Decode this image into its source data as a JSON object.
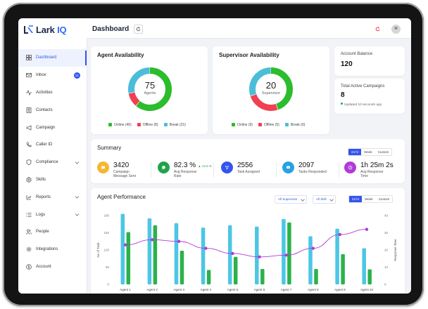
{
  "app": {
    "logo_main": "Lark",
    "logo_accent": "IQ",
    "page_title": "Dashboard",
    "avatar_initial": "M"
  },
  "sidebar": {
    "items": [
      {
        "label": "Dashboard",
        "icon": "grid-icon",
        "active": true
      },
      {
        "label": "Inbox",
        "icon": "mail-icon",
        "badge": "21"
      },
      {
        "label": "Activities",
        "icon": "pulse-icon"
      },
      {
        "label": "Contacts",
        "icon": "contacts-icon"
      },
      {
        "label": "Campaign",
        "icon": "megaphone-icon"
      },
      {
        "label": "Caller ID",
        "icon": "phone-icon"
      },
      {
        "label": "Compliance",
        "icon": "shield-icon",
        "expandable": true
      },
      {
        "label": "Skills",
        "icon": "badge-icon"
      },
      {
        "label": "Reports",
        "icon": "reports-icon",
        "expandable": true
      },
      {
        "label": "Logs",
        "icon": "list-icon",
        "expandable": true
      },
      {
        "label": "People",
        "icon": "people-icon"
      },
      {
        "label": "Integrations",
        "icon": "gear-icon"
      },
      {
        "label": "Account",
        "icon": "dollar-icon"
      }
    ]
  },
  "agent_availability": {
    "title": "Agent Availability",
    "total": "75",
    "center_label": "Agents",
    "segments": [
      {
        "label": "Online (46)",
        "value": 46,
        "color": "#2bbd2b"
      },
      {
        "label": "Offline (8)",
        "value": 8,
        "color": "#f04052"
      },
      {
        "label": "Break (21)",
        "value": 21,
        "color": "#4cbdd9"
      }
    ]
  },
  "supervisor_availability": {
    "title": "Supervisor Availability",
    "total": "20",
    "center_label": "Supervisor",
    "segments": [
      {
        "label": "Online (9)",
        "value": 9,
        "color": "#2bbd2b"
      },
      {
        "label": "Offline (5)",
        "value": 5,
        "color": "#f04052"
      },
      {
        "label": "Break (6)",
        "value": 6,
        "color": "#4cbdd9"
      }
    ]
  },
  "account_balance": {
    "label": "Account Balance",
    "value": "120"
  },
  "active_campaigns": {
    "label": "Total Active Campaigns",
    "value": "8",
    "updated": "Updated 10 seconds ago"
  },
  "summary": {
    "title": "Summary",
    "range_options": [
      "24 hr",
      "Week",
      "Custom"
    ],
    "selected_range": "24 hr",
    "kpis": [
      {
        "value": "3420",
        "label_1": "Campaign",
        "label_2": "Message Sent",
        "color": "#f5b731",
        "icon": "message-icon"
      },
      {
        "value": "82.3 %",
        "delta": "▲ 12.5 %",
        "label_1": "Avg Response",
        "label_2": "Rate",
        "color": "#22a34b",
        "icon": "chat-icon"
      },
      {
        "value": "2556",
        "label_1": "Task Assigned",
        "label_2": "",
        "color": "#3355ee",
        "icon": "task-icon"
      },
      {
        "value": "2097",
        "label_1": "Tasks Responded",
        "label_2": "",
        "color": "#27a2e0",
        "icon": "reply-icon"
      },
      {
        "value": "1h 25m 2s",
        "label_1": "Avg Response",
        "label_2": "Time",
        "color": "#b23ad6",
        "icon": "clock-icon"
      }
    ]
  },
  "agent_performance": {
    "title": "Agent Performance",
    "filter_supervisor": "All Supervisor",
    "filter_skill": "All Skill",
    "range_options": [
      "24 hr",
      "Week",
      "Custom"
    ],
    "selected_range": "24 hr"
  },
  "chart_data": {
    "type": "bar",
    "categories": [
      "Agent 1",
      "Agent 2",
      "Agent 3",
      "Agent 4",
      "Agent 5",
      "Agent 6",
      "Agent 7",
      "Agent 8",
      "Agent 9",
      "Agent 10"
    ],
    "xlabel": "",
    "ylabel": "No of Task",
    "y2label": "Response Time",
    "ylim": [
      0,
      200
    ],
    "y2lim": [
      0,
      40
    ],
    "yticks": [
      0,
      50,
      100,
      150,
      200
    ],
    "y2ticks": [
      0,
      10,
      20,
      30,
      40
    ],
    "grid": false,
    "series": [
      {
        "values": [
          205,
          192,
          178,
          165,
          172,
          168,
          190,
          140,
          162,
          105
        ],
        "color": "#4cc6e4",
        "kind": "bar"
      },
      {
        "values": [
          152,
          172,
          98,
          42,
          80,
          45,
          180,
          45,
          88,
          44
        ],
        "color": "#2bb24a",
        "kind": "bar"
      },
      {
        "values": [
          23,
          26,
          25,
          21,
          18,
          16,
          17,
          21,
          29,
          32
        ],
        "color": "#b23ad6",
        "kind": "line",
        "axis": "right"
      }
    ]
  },
  "colors": {
    "accent": "#3355ee",
    "background": "#f1f3f6"
  }
}
